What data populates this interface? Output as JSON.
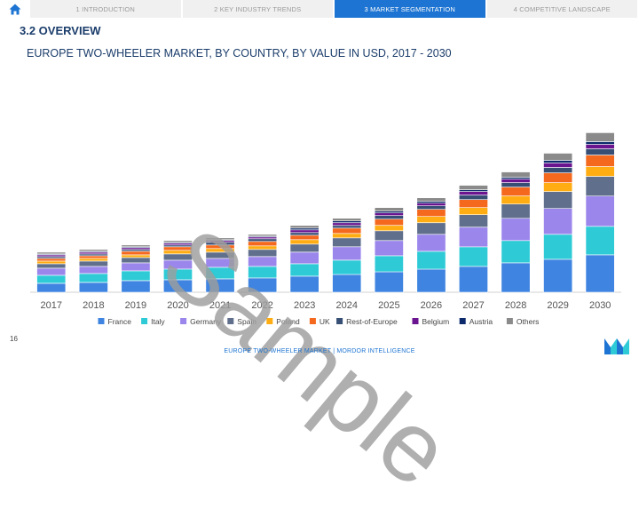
{
  "nav": {
    "tabs": [
      {
        "label": "1 INTRODUCTION",
        "active": false
      },
      {
        "label": "2 KEY INDUSTRY TRENDS",
        "active": false
      },
      {
        "label": "3 MARKET SEGMENTATION",
        "active": true
      },
      {
        "label": "4 COMPETITIVE LANDSCAPE",
        "active": false
      }
    ],
    "home_icon": "home-icon"
  },
  "section_title": "3.2 OVERVIEW",
  "chart_title": "EUROPE TWO-WHEELER MARKET, BY  COUNTRY, BY VALUE IN USD,  2017 - 2030",
  "watermark": "Sample",
  "page_number": "16",
  "footer": "EUROPE TWO-WHEELER MARKET | MORDOR INTELLIGENCE",
  "colors": {
    "accent": "#1d74d2",
    "title": "#1b3d6b"
  },
  "chart_data": {
    "type": "bar",
    "stacked": true,
    "categories": [
      "2017",
      "2018",
      "2019",
      "2020",
      "2021",
      "2022",
      "2023",
      "2024",
      "2025",
      "2026",
      "2027",
      "2028",
      "2029",
      "2030"
    ],
    "ylim": [
      0,
      200
    ],
    "grid": false,
    "legend_position": "bottom",
    "series": [
      {
        "name": "France",
        "color": "#3e84e0",
        "values": [
          10,
          11,
          13,
          14,
          15,
          16,
          18,
          20,
          23,
          26,
          29,
          33,
          37,
          42
        ]
      },
      {
        "name": "Italy",
        "color": "#2ecbd7",
        "values": [
          9,
          10,
          11,
          12,
          13,
          13,
          14,
          16,
          18,
          20,
          22,
          25,
          28,
          32
        ]
      },
      {
        "name": "Germany",
        "color": "#9b86ec",
        "values": [
          8,
          8,
          9,
          10,
          10,
          11,
          13,
          15,
          17,
          19,
          22,
          25,
          29,
          34
        ]
      },
      {
        "name": "Spain",
        "color": "#5f6f8c",
        "values": [
          5,
          6,
          6,
          7,
          7,
          8,
          9,
          10,
          11,
          13,
          14,
          16,
          19,
          22
        ]
      },
      {
        "name": "Poland",
        "color": "#ffad12",
        "values": [
          3,
          3,
          3,
          4,
          4,
          4,
          5,
          5,
          6,
          7,
          8,
          9,
          10,
          11
        ]
      },
      {
        "name": "UK",
        "color": "#f5691e",
        "values": [
          3,
          3,
          4,
          4,
          4,
          5,
          5,
          6,
          7,
          8,
          9,
          10,
          11,
          13
        ]
      },
      {
        "name": "Rest-of-Europe",
        "color": "#374e75",
        "values": [
          2,
          2,
          2,
          2,
          3,
          3,
          3,
          3,
          4,
          4,
          5,
          5,
          6,
          7
        ]
      },
      {
        "name": "Belgium",
        "color": "#6a1490",
        "values": [
          2,
          2,
          2,
          2,
          2,
          2,
          3,
          3,
          3,
          3,
          4,
          4,
          5,
          5
        ]
      },
      {
        "name": "Austria",
        "color": "#0c2a6b",
        "values": [
          1,
          1,
          1,
          1,
          1,
          1,
          2,
          2,
          2,
          2,
          2,
          2,
          3,
          3
        ]
      },
      {
        "name": "Others",
        "color": "#8a8a8a",
        "values": [
          2,
          2,
          2,
          2,
          2,
          2,
          3,
          3,
          4,
          4,
          5,
          6,
          8,
          10
        ]
      }
    ]
  }
}
